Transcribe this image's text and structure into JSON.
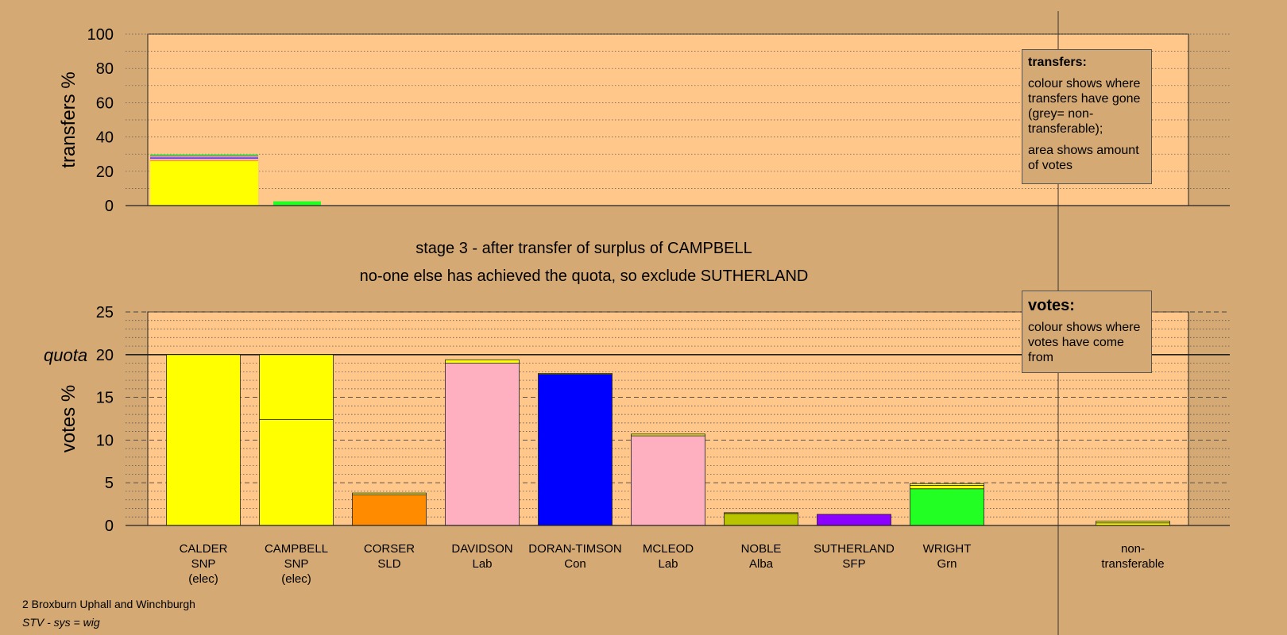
{
  "stage_title": "stage 3 - after transfer of surplus of CAMPBELL",
  "stage_subtitle": "no-one else has achieved the quota, so exclude SUTHERLAND",
  "quota_label": "quota",
  "transfers_legend": {
    "title": "transfers:",
    "text1": "colour shows where transfers have gone (grey= non-transferable);",
    "text2": "area shows amount of votes"
  },
  "votes_legend": {
    "title": "votes:",
    "text1": "colour shows where votes have come from"
  },
  "footer": {
    "ward": "2 Broxburn Uphall and Winchburgh",
    "system": "STV - sys = wig"
  },
  "colors": {
    "background": "#d4a974",
    "plot": "#ffc78a",
    "CALDER": "#ffff00",
    "CAMPBELL": "#ffff00",
    "CORSER": "#ff8c00",
    "DAVIDSON": "#ffb0c0",
    "DORAN-TIMSON": "#0000ff",
    "MCLEOD": "#ffb0c0",
    "NOBLE": "#b8c400",
    "SUTHERLAND": "#8b00ff",
    "WRIGHT": "#22ff22",
    "non-transferable": "#aaaaaa"
  },
  "chart_data": [
    {
      "type": "bar",
      "ylabel": "transfers %",
      "ylim": [
        0,
        100
      ],
      "yticks": [
        0,
        20,
        40,
        60,
        80,
        100
      ],
      "bars": [
        {
          "segments": [
            {
              "party": "CALDER",
              "value": 26
            },
            {
              "party": "CORSER",
              "value": 0.5
            },
            {
              "party": "DAVIDSON",
              "value": 1
            },
            {
              "party": "DORAN-TIMSON",
              "value": 0.5
            },
            {
              "party": "MCLEOD",
              "value": 0.5
            },
            {
              "party": "NOBLE",
              "value": 0.3
            },
            {
              "party": "SUTHERLAND",
              "value": 0.3
            },
            {
              "party": "WRIGHT",
              "value": 0.6
            },
            {
              "party": "non-transferable",
              "value": 0.3
            }
          ]
        },
        {
          "segments": [
            {
              "party": "WRIGHT",
              "value": 2.5
            }
          ]
        }
      ]
    },
    {
      "type": "bar",
      "ylabel": "votes %",
      "ylim": [
        0,
        25
      ],
      "yticks": [
        0,
        5,
        10,
        15,
        20,
        25
      ],
      "quota": 20,
      "candidates": [
        {
          "name": "CALDER",
          "party": "SNP",
          "note": "(elec)",
          "segments": [
            {
              "party": "CALDER",
              "value": 20.0
            }
          ]
        },
        {
          "name": "CAMPBELL",
          "party": "SNP",
          "note": "(elec)",
          "segments": [
            {
              "party": "CAMPBELL",
              "value": 12.4
            },
            {
              "party": "CAMPBELL",
              "value": 7.6
            }
          ]
        },
        {
          "name": "CORSER",
          "party": "SLD",
          "note": "",
          "segments": [
            {
              "party": "CORSER",
              "value": 3.6
            },
            {
              "party": "CALDER",
              "value": 0.2
            }
          ]
        },
        {
          "name": "DAVIDSON",
          "party": "Lab",
          "note": "",
          "segments": [
            {
              "party": "DAVIDSON",
              "value": 19.0
            },
            {
              "party": "CALDER",
              "value": 0.4
            }
          ]
        },
        {
          "name": "DORAN-TIMSON",
          "party": "Con",
          "note": "",
          "segments": [
            {
              "party": "DORAN-TIMSON",
              "value": 17.7
            },
            {
              "party": "CALDER",
              "value": 0.1
            }
          ]
        },
        {
          "name": "MCLEOD",
          "party": "Lab",
          "note": "",
          "segments": [
            {
              "party": "MCLEOD",
              "value": 10.5
            },
            {
              "party": "CALDER",
              "value": 0.2
            }
          ]
        },
        {
          "name": "NOBLE",
          "party": "Alba",
          "note": "",
          "segments": [
            {
              "party": "NOBLE",
              "value": 1.4
            },
            {
              "party": "CALDER",
              "value": 0.1
            }
          ]
        },
        {
          "name": "SUTHERLAND",
          "party": "SFP",
          "note": "",
          "segments": [
            {
              "party": "SUTHERLAND",
              "value": 1.3
            }
          ]
        },
        {
          "name": "WRIGHT",
          "party": "Grn",
          "note": "",
          "segments": [
            {
              "party": "WRIGHT",
              "value": 4.3
            },
            {
              "party": "CALDER",
              "value": 0.4
            },
            {
              "party": "CAMPBELL",
              "value": 0.2
            }
          ]
        },
        {
          "name": "non-",
          "party": "transferable",
          "note": "",
          "segments": [
            {
              "party": "CALDER",
              "value": 0.3
            },
            {
              "party": "CAMPBELL",
              "value": 0.2
            }
          ]
        }
      ]
    }
  ]
}
